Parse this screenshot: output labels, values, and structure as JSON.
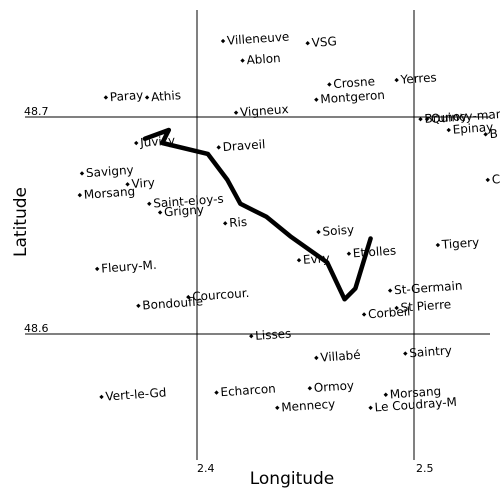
{
  "chart_data": {
    "type": "scatter",
    "xlabel": "Longitude",
    "ylabel": "Latitude",
    "x_ticks": [
      "2.4",
      "2.5"
    ],
    "y_ticks": [
      "48.7",
      "48.6"
    ],
    "grid": true,
    "points": [
      {
        "name": "Villeneuve",
        "lon": 2.412,
        "lat": 48.735
      },
      {
        "name": "Ablon",
        "lon": 2.421,
        "lat": 48.726
      },
      {
        "name": "VSG",
        "lon": 2.451,
        "lat": 48.734
      },
      {
        "name": "Crosne",
        "lon": 2.461,
        "lat": 48.715
      },
      {
        "name": "Yerres",
        "lon": 2.492,
        "lat": 48.717
      },
      {
        "name": "Montgeron",
        "lon": 2.455,
        "lat": 48.708
      },
      {
        "name": "Paray",
        "lon": 2.358,
        "lat": 48.709
      },
      {
        "name": "Athis",
        "lon": 2.377,
        "lat": 48.709
      },
      {
        "name": "Vigneux",
        "lon": 2.418,
        "lat": 48.702
      },
      {
        "name": "Brunoy",
        "lon": 2.503,
        "lat": 48.699
      },
      {
        "name": "Quincy-mary",
        "lon": 2.506,
        "lat": 48.699
      },
      {
        "name": "Epinay",
        "lon": 2.516,
        "lat": 48.694
      },
      {
        "name": "B",
        "lon": 2.533,
        "lat": 48.692
      },
      {
        "name": "Juvisy",
        "lon": 2.372,
        "lat": 48.688
      },
      {
        "name": "Draveil",
        "lon": 2.41,
        "lat": 48.686
      },
      {
        "name": "Savigny",
        "lon": 2.347,
        "lat": 48.674
      },
      {
        "name": "Viry",
        "lon": 2.368,
        "lat": 48.669
      },
      {
        "name": "Morsang",
        "lon": 2.346,
        "lat": 48.664
      },
      {
        "name": "Saint-eloy-s",
        "lon": 2.378,
        "lat": 48.66
      },
      {
        "name": "Grigny",
        "lon": 2.383,
        "lat": 48.656
      },
      {
        "name": "C",
        "lon": 2.534,
        "lat": 48.671
      },
      {
        "name": "Ris",
        "lon": 2.413,
        "lat": 48.651
      },
      {
        "name": "Soisy",
        "lon": 2.456,
        "lat": 48.647
      },
      {
        "name": "Evry",
        "lon": 2.447,
        "lat": 48.634
      },
      {
        "name": "Etiolles",
        "lon": 2.47,
        "lat": 48.637
      },
      {
        "name": "Tigery",
        "lon": 2.511,
        "lat": 48.641
      },
      {
        "name": "Fleury-M.",
        "lon": 2.354,
        "lat": 48.63
      },
      {
        "name": "St-Germain",
        "lon": 2.489,
        "lat": 48.62
      },
      {
        "name": "St Pierre",
        "lon": 2.492,
        "lat": 48.612
      },
      {
        "name": "Corbeil",
        "lon": 2.477,
        "lat": 48.609
      },
      {
        "name": "Bondoufle",
        "lon": 2.373,
        "lat": 48.613
      },
      {
        "name": "Courcour.",
        "lon": 2.396,
        "lat": 48.617
      },
      {
        "name": "Lisses",
        "lon": 2.425,
        "lat": 48.599
      },
      {
        "name": "Villabé",
        "lon": 2.455,
        "lat": 48.589
      },
      {
        "name": "Saintry",
        "lon": 2.496,
        "lat": 48.591
      },
      {
        "name": "Vert-le-Gd",
        "lon": 2.356,
        "lat": 48.571
      },
      {
        "name": "Echarcon",
        "lon": 2.409,
        "lat": 48.573
      },
      {
        "name": "Ormoy",
        "lon": 2.452,
        "lat": 48.575
      },
      {
        "name": "Mennecy",
        "lon": 2.437,
        "lat": 48.566
      },
      {
        "name": "Morsang",
        "lon": 2.487,
        "lat": 48.572
      },
      {
        "name": "Le Coudray-M",
        "lon": 2.48,
        "lat": 48.566
      }
    ],
    "route": [
      [
        2.48,
        48.644
      ],
      [
        2.473,
        48.621
      ],
      [
        2.468,
        48.616
      ],
      [
        2.46,
        48.633
      ],
      [
        2.443,
        48.645
      ],
      [
        2.432,
        48.654
      ],
      [
        2.42,
        48.66
      ],
      [
        2.414,
        48.671
      ],
      [
        2.405,
        48.683
      ],
      [
        2.384,
        48.688
      ],
      [
        2.387,
        48.694
      ],
      [
        2.376,
        48.69
      ]
    ]
  }
}
